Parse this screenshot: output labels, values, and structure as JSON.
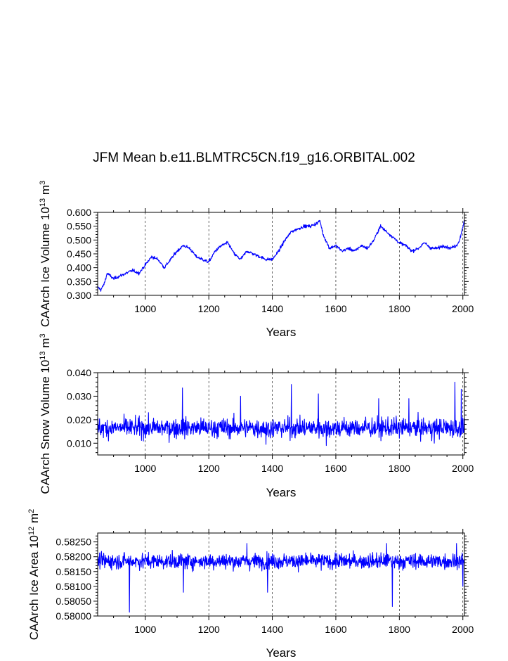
{
  "figure": {
    "title": "JFM Mean b.e11.BLMTRC5CN.f19_g16.ORBITAL.002"
  },
  "chart_data": [
    {
      "type": "line",
      "series_color": "#0000ff",
      "xlabel": "Years",
      "ylabel": {
        "base": "CAArch Ice Volume 10",
        "exp": "13",
        "unit": " m",
        "unit_exp": "3"
      },
      "xlim": [
        850,
        2005
      ],
      "ylim": [
        0.3,
        0.6
      ],
      "xticks": [
        1000,
        1200,
        1400,
        1600,
        1800,
        2000
      ],
      "yticks": [
        "0.300",
        "0.350",
        "0.400",
        "0.450",
        "0.500",
        "0.550",
        "0.600"
      ],
      "ytick_values": [
        0.3,
        0.35,
        0.4,
        0.45,
        0.5,
        0.55,
        0.6
      ],
      "x": [
        850,
        860,
        870,
        880,
        890,
        900,
        920,
        940,
        960,
        980,
        1000,
        1020,
        1040,
        1060,
        1080,
        1100,
        1120,
        1140,
        1160,
        1180,
        1200,
        1220,
        1240,
        1260,
        1280,
        1300,
        1320,
        1340,
        1360,
        1380,
        1400,
        1420,
        1440,
        1460,
        1480,
        1500,
        1520,
        1540,
        1550,
        1560,
        1580,
        1600,
        1620,
        1640,
        1660,
        1680,
        1700,
        1720,
        1740,
        1760,
        1780,
        1800,
        1820,
        1840,
        1860,
        1880,
        1900,
        1920,
        1940,
        1960,
        1980,
        1990,
        2000,
        2005
      ],
      "y": [
        0.33,
        0.32,
        0.34,
        0.38,
        0.37,
        0.36,
        0.37,
        0.38,
        0.39,
        0.38,
        0.41,
        0.44,
        0.43,
        0.4,
        0.43,
        0.46,
        0.48,
        0.47,
        0.44,
        0.43,
        0.42,
        0.46,
        0.48,
        0.49,
        0.45,
        0.43,
        0.46,
        0.45,
        0.44,
        0.43,
        0.43,
        0.46,
        0.5,
        0.53,
        0.54,
        0.55,
        0.55,
        0.56,
        0.57,
        0.52,
        0.47,
        0.48,
        0.46,
        0.47,
        0.46,
        0.48,
        0.47,
        0.5,
        0.55,
        0.53,
        0.51,
        0.49,
        0.48,
        0.46,
        0.47,
        0.49,
        0.47,
        0.47,
        0.48,
        0.47,
        0.48,
        0.5,
        0.55,
        0.57
      ],
      "noise": 0.008
    },
    {
      "type": "line",
      "series_color": "#0000ff",
      "xlabel": "Years",
      "ylabel": {
        "base": "CAArch Snow Volume 10",
        "exp": "13",
        "unit": " m",
        "unit_exp": "3"
      },
      "xlim": [
        850,
        2005
      ],
      "ylim": [
        0.005,
        0.04
      ],
      "xticks": [
        1000,
        1200,
        1400,
        1600,
        1800,
        2000
      ],
      "yticks": [
        "0.010",
        "0.020",
        "0.030",
        "0.040"
      ],
      "ytick_values": [
        0.01,
        0.02,
        0.03,
        0.04
      ],
      "mean": 0.0165,
      "spread": 0.0035,
      "spikes": [
        [
          1117,
          0.0335
        ],
        [
          1300,
          0.03
        ],
        [
          1460,
          0.035
        ],
        [
          1545,
          0.031
        ],
        [
          1735,
          0.029
        ],
        [
          1830,
          0.029
        ],
        [
          1975,
          0.036
        ],
        [
          1995,
          0.033
        ]
      ],
      "dips": [
        [
          1380,
          0.0095
        ],
        [
          1570,
          0.009
        ],
        [
          1910,
          0.01
        ]
      ]
    },
    {
      "type": "line",
      "series_color": "#0000ff",
      "xlabel": "Years",
      "ylabel": {
        "base": "CAArch Ice Area 10",
        "exp": "12",
        "unit": " m",
        "unit_exp": "2"
      },
      "xlim": [
        850,
        2005
      ],
      "ylim": [
        0.58,
        0.5828
      ],
      "xticks": [
        1000,
        1200,
        1400,
        1600,
        1800,
        2000
      ],
      "yticks": [
        "0.58000",
        "0.58050",
        "0.58100",
        "0.58150",
        "0.58200",
        "0.58250"
      ],
      "ytick_values": [
        0.58,
        0.5805,
        0.581,
        0.5815,
        0.582,
        0.5825
      ],
      "mean": 0.58185,
      "spread": 0.00022,
      "spikes": [
        [
          1320,
          0.58245
        ],
        [
          1760,
          0.58245
        ],
        [
          1980,
          0.58245
        ]
      ],
      "dips": [
        [
          950,
          0.58013
        ],
        [
          1120,
          0.5808
        ],
        [
          1385,
          0.5808
        ],
        [
          1778,
          0.58032
        ],
        [
          2000,
          0.581
        ]
      ]
    }
  ]
}
